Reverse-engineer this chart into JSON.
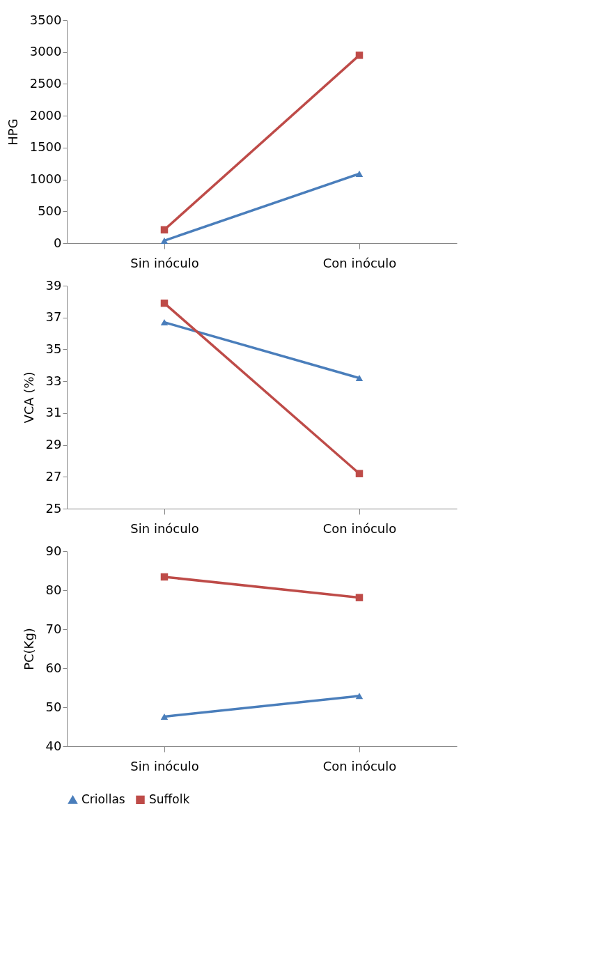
{
  "chart_data": [
    {
      "type": "line",
      "ylabel": "HPG",
      "categories": [
        "Sin inóculo",
        "Con inóculo"
      ],
      "ylim": [
        0,
        3500
      ],
      "yticks": [
        0,
        500,
        1000,
        1500,
        2000,
        2500,
        3000,
        3500
      ],
      "grid": false,
      "line_style": "solid",
      "series": [
        {
          "color": "#4a7ebb",
          "marker": "triangle",
          "values": [
            40,
            1090
          ]
        },
        {
          "color": "#be4b48",
          "marker": "square",
          "values": [
            210,
            2950
          ]
        }
      ]
    },
    {
      "type": "line",
      "ylabel": "VCA (%)",
      "categories": [
        "Sin inóculo",
        "Con inóculo"
      ],
      "ylim": [
        25,
        39
      ],
      "yticks": [
        25,
        27,
        29,
        31,
        33,
        35,
        37,
        39
      ],
      "grid": false,
      "line_style": "solid",
      "series": [
        {
          "color": "#4a7ebb",
          "marker": "triangle",
          "values": [
            36.7,
            33.2
          ]
        },
        {
          "color": "#be4b48",
          "marker": "square",
          "values": [
            37.9,
            27.2
          ]
        }
      ]
    },
    {
      "type": "line",
      "ylabel": "PC(Kg)",
      "categories": [
        "Sin inóculo",
        "Con inóculo"
      ],
      "ylim": [
        40,
        90
      ],
      "yticks": [
        40,
        50,
        60,
        70,
        80,
        90
      ],
      "grid": false,
      "legend": "bottom",
      "line_style": "solid",
      "series": [
        {
          "name": "Criollas",
          "color": "#4a7ebb",
          "marker": "triangle",
          "values": [
            47.6,
            52.9
          ]
        },
        {
          "name": "Suffolk",
          "color": "#be4b48",
          "marker": "square",
          "values": [
            83.4,
            78.1
          ]
        }
      ]
    }
  ]
}
